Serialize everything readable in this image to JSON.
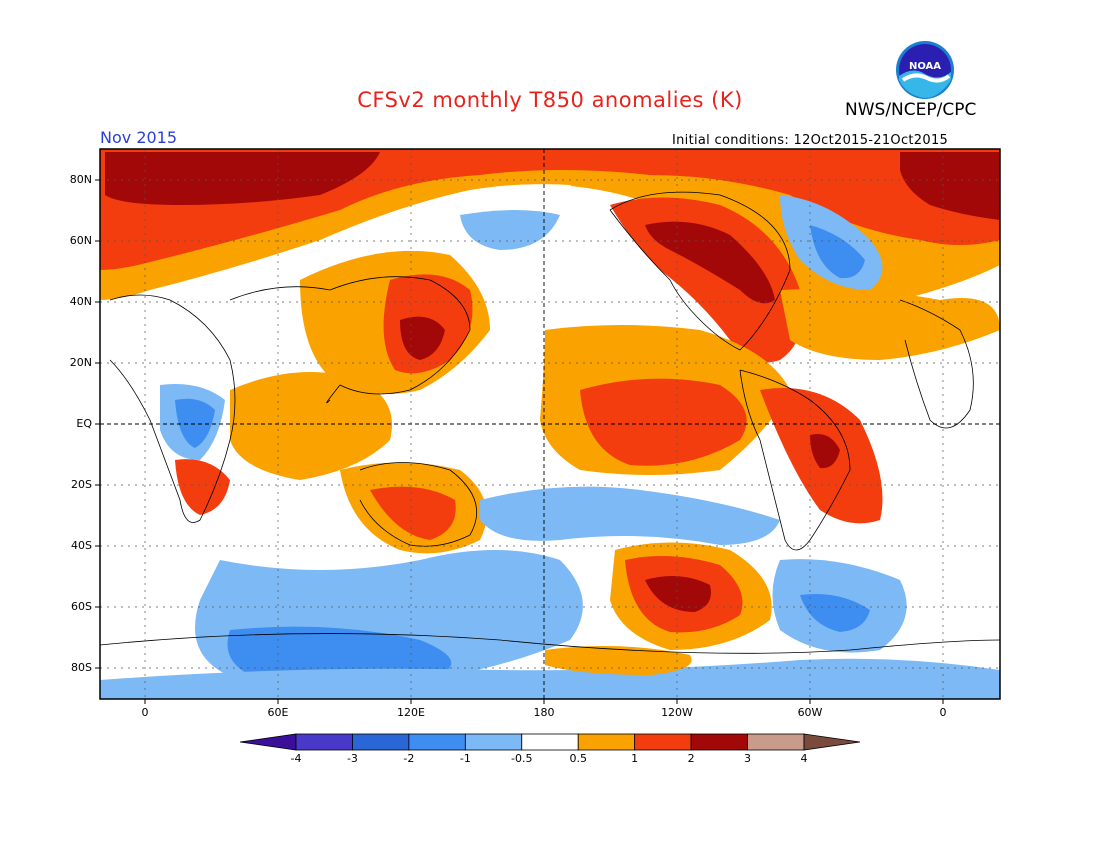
{
  "header": {
    "title": "CFSv2 monthly T850 anomalies (K)",
    "agency": "NWS/NCEP/CPC",
    "logo_text": "NOAA",
    "month": "Nov 2015",
    "initial_conditions": "Initial conditions: 12Oct2015-21Oct2015"
  },
  "axes": {
    "lat_labels": [
      "80N",
      "60N",
      "40N",
      "20N",
      "EQ",
      "20S",
      "40S",
      "60S",
      "80S"
    ],
    "lon_labels": [
      "0",
      "60E",
      "120E",
      "180",
      "120W",
      "60W",
      "0"
    ]
  },
  "colorbar": {
    "tick_labels": [
      "-4",
      "-3",
      "-2",
      "-1",
      "-0.5",
      "0.5",
      "1",
      "2",
      "3",
      "4"
    ],
    "colors": [
      "#3a0f9a",
      "#4a38c8",
      "#2a66d6",
      "#3d8ef0",
      "#7db9f5",
      "#ffffff",
      "#f9a200",
      "#f33d0e",
      "#a30808",
      "#c89b8a",
      "#7a4a3c"
    ]
  }
}
